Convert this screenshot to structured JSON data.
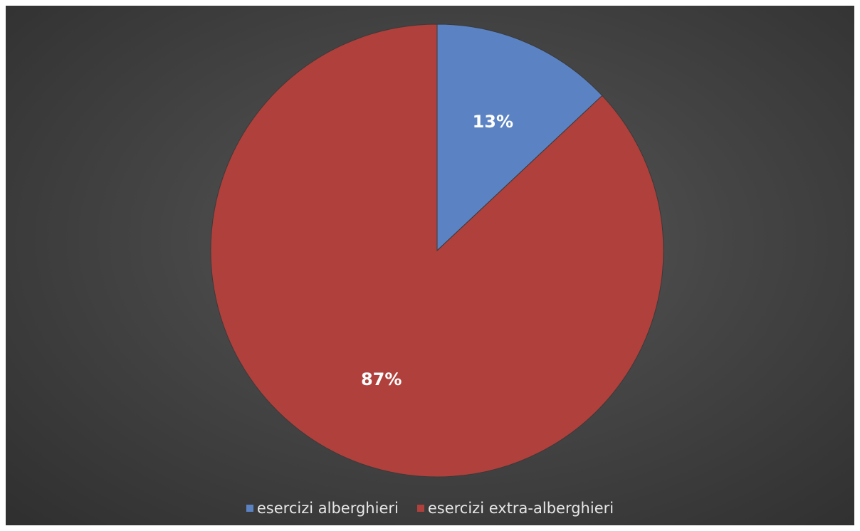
{
  "chart_data": {
    "type": "pie",
    "title": "",
    "slices": [
      {
        "name": "esercizi alberghieri",
        "value": 13,
        "label": "13%",
        "color": "#5b83c4"
      },
      {
        "name": "esercizi extra-alberghieri",
        "value": 87,
        "label": "87%",
        "color": "#b0403b"
      }
    ],
    "start_angle_deg": 0,
    "direction": "clockwise",
    "legend_position": "bottom"
  }
}
